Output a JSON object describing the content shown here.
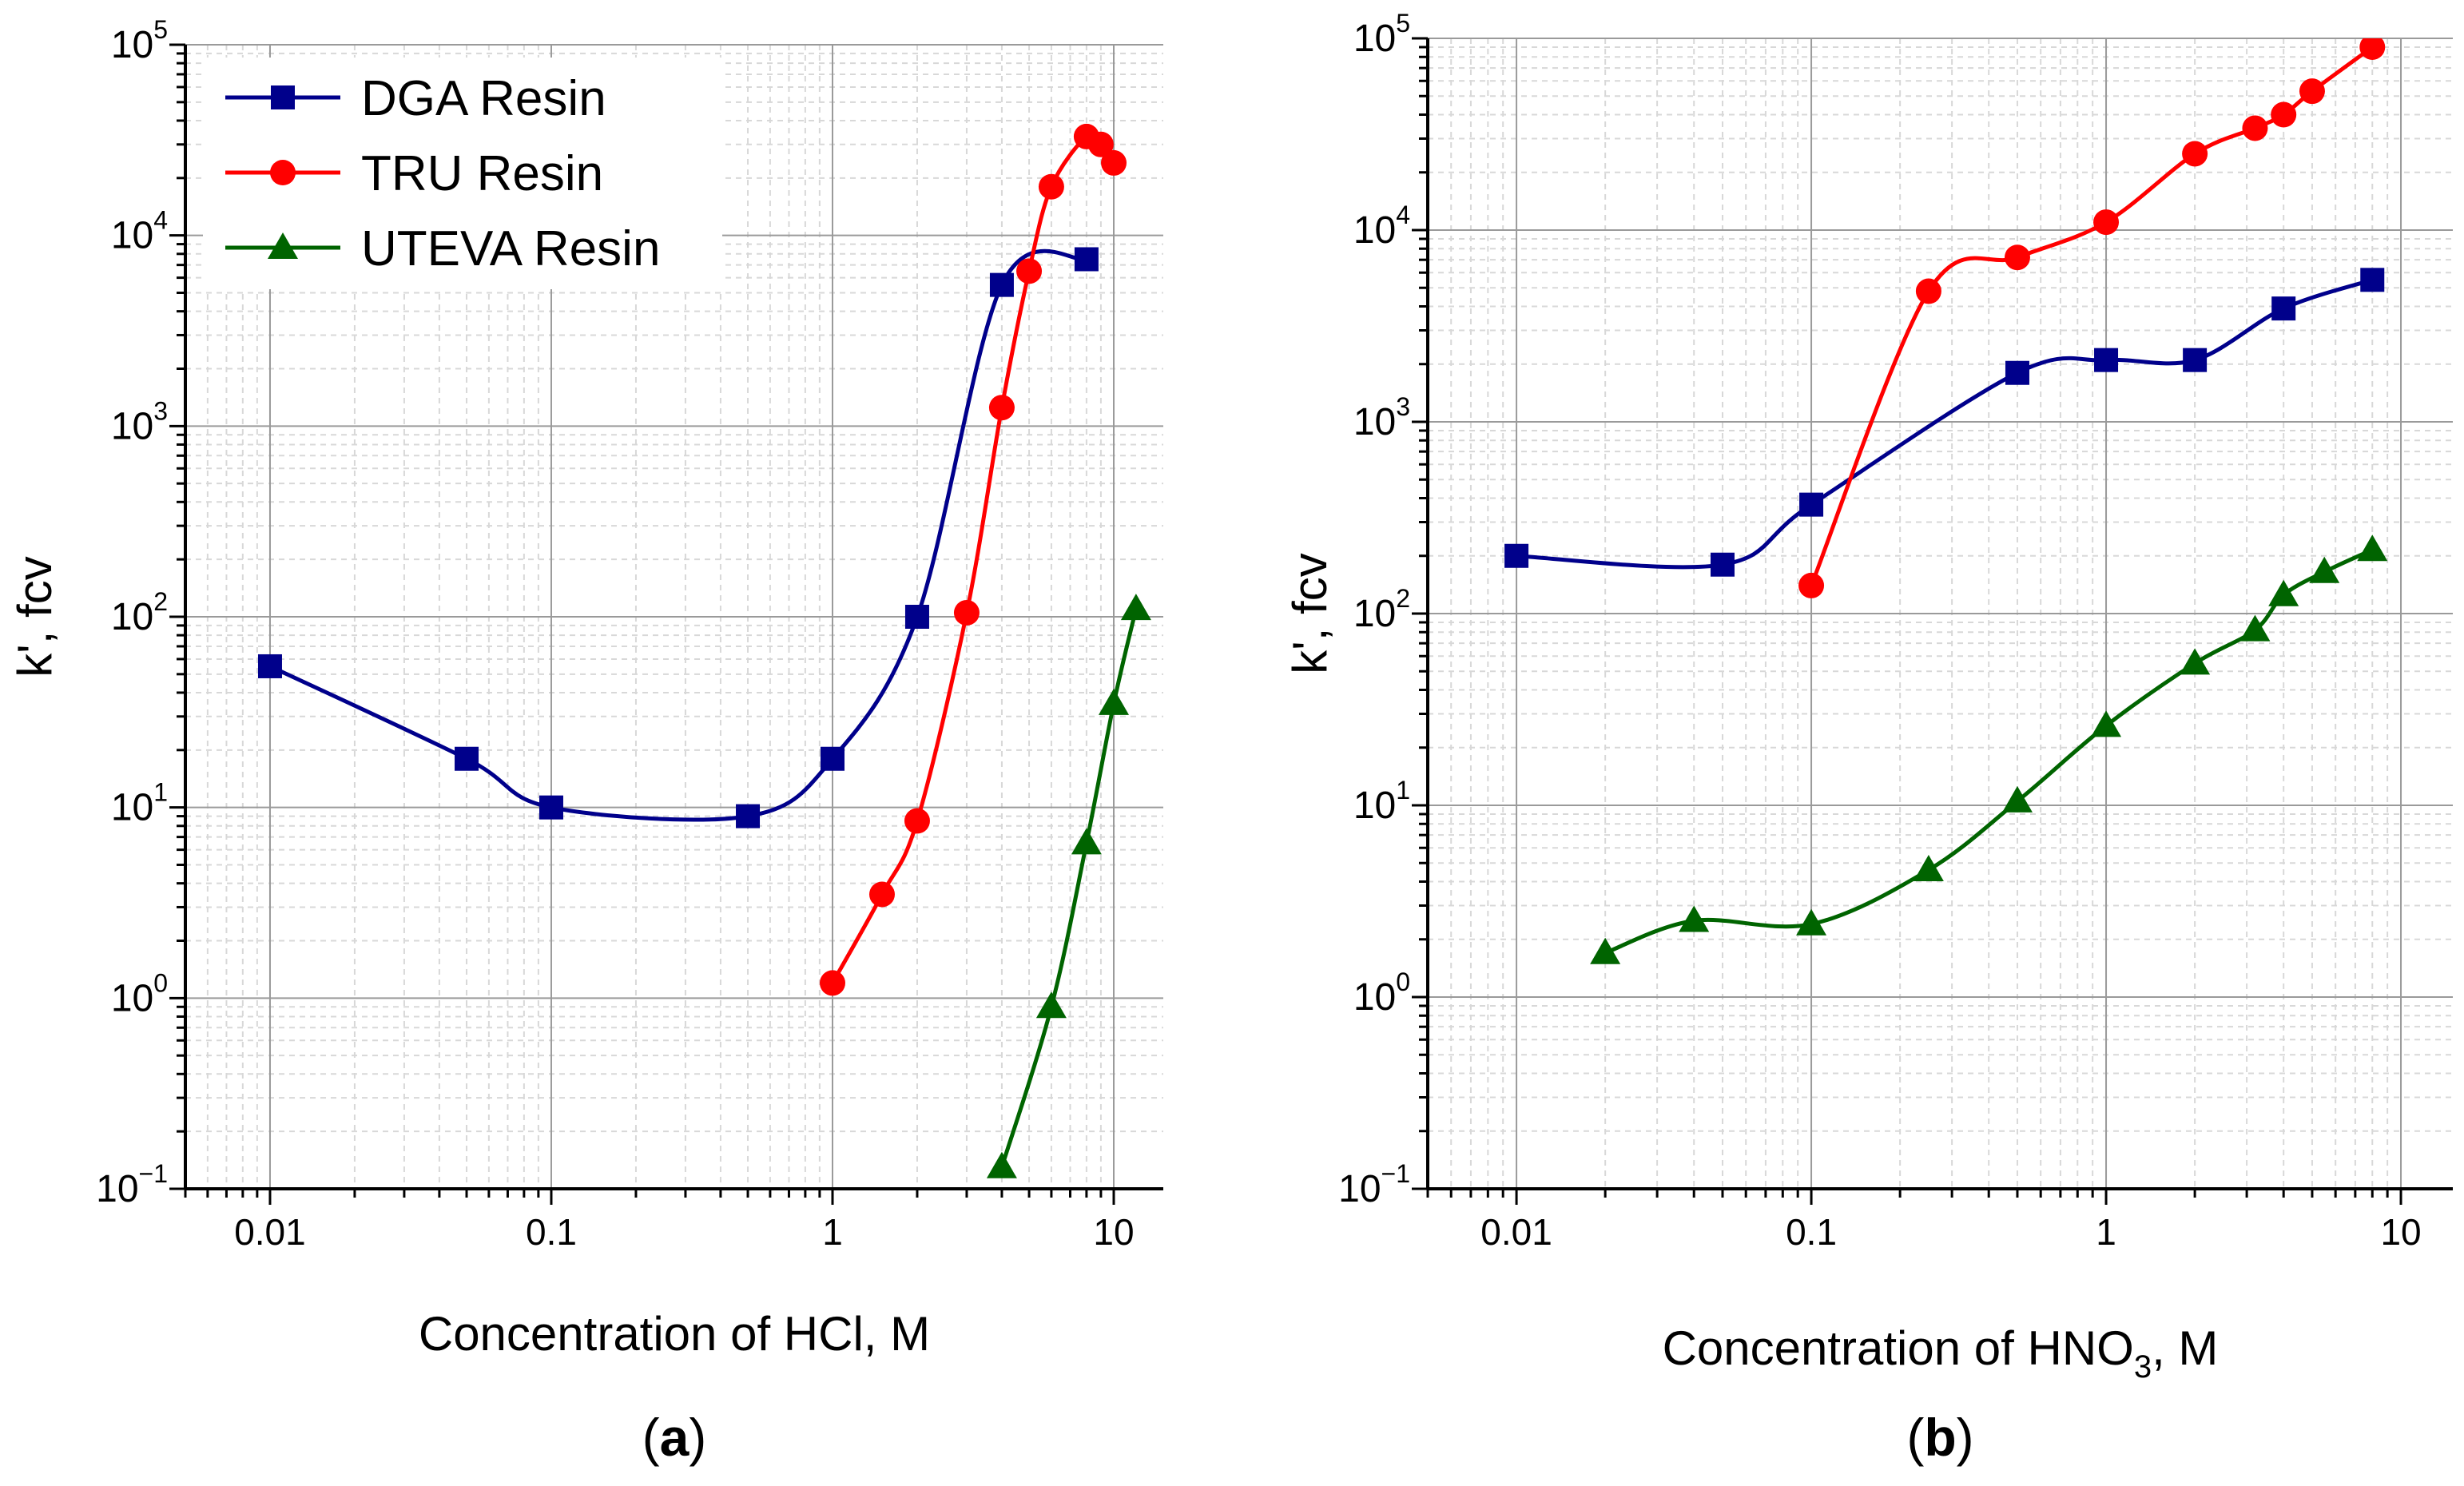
{
  "chart_data": [
    {
      "type": "line",
      "panel_label_open": "(",
      "panel_label_letter": "a",
      "panel_label_close": ")",
      "xlabel": "Concentration of HCl, M",
      "ylabel": "k', fcv",
      "xscale": "log",
      "yscale": "log",
      "xlim": [
        0.005,
        15
      ],
      "ylim": [
        0.1,
        100000
      ],
      "grid": true,
      "legend_position": "top-left",
      "xticks": [
        {
          "value": 0.01,
          "label": "0.01"
        },
        {
          "value": 0.1,
          "label": "0.1"
        },
        {
          "value": 1,
          "label": "1"
        },
        {
          "value": 10,
          "label": "10"
        }
      ],
      "yticks": [
        {
          "value": 0.1,
          "base": "10",
          "exp": "−1"
        },
        {
          "value": 1,
          "base": "10",
          "exp": "0"
        },
        {
          "value": 10,
          "base": "10",
          "exp": "1"
        },
        {
          "value": 100,
          "base": "10",
          "exp": "2"
        },
        {
          "value": 1000,
          "base": "10",
          "exp": "3"
        },
        {
          "value": 10000,
          "base": "10",
          "exp": "4"
        },
        {
          "value": 100000,
          "base": "10",
          "exp": "5"
        }
      ],
      "series": [
        {
          "name": "DGA Resin",
          "color": "#00008b",
          "marker": "square",
          "x": [
            0.01,
            0.05,
            0.1,
            0.5,
            1,
            2,
            4,
            8
          ],
          "y": [
            55,
            18,
            10,
            9,
            18,
            100,
            5500,
            7500
          ]
        },
        {
          "name": "TRU Resin",
          "color": "#ff0000",
          "marker": "circle",
          "x": [
            1,
            1.5,
            2,
            3,
            4,
            5,
            6,
            8,
            9,
            10
          ],
          "y": [
            1.2,
            3.5,
            8.5,
            105,
            1250,
            6500,
            18000,
            33000,
            30000,
            24000
          ]
        },
        {
          "name": "UTEVA Resin",
          "color": "#006400",
          "marker": "triangle",
          "x": [
            4,
            6,
            8,
            10,
            12
          ],
          "y": [
            0.13,
            0.9,
            6.5,
            35,
            110
          ]
        }
      ]
    },
    {
      "type": "line",
      "panel_label_open": "(",
      "panel_label_letter": "b",
      "panel_label_close": ")",
      "xlabel_prefix": "Concentration of HNO",
      "xlabel_sub": "3",
      "xlabel_suffix": ", M",
      "ylabel": "k', fcv",
      "xscale": "log",
      "yscale": "log",
      "xlim": [
        0.005,
        15
      ],
      "ylim": [
        0.1,
        100000
      ],
      "grid": true,
      "xticks": [
        {
          "value": 0.01,
          "label": "0.01"
        },
        {
          "value": 0.1,
          "label": "0.1"
        },
        {
          "value": 1,
          "label": "1"
        },
        {
          "value": 10,
          "label": "10"
        }
      ],
      "yticks": [
        {
          "value": 0.1,
          "base": "10",
          "exp": "−1"
        },
        {
          "value": 1,
          "base": "10",
          "exp": "0"
        },
        {
          "value": 10,
          "base": "10",
          "exp": "1"
        },
        {
          "value": 100,
          "base": "10",
          "exp": "2"
        },
        {
          "value": 1000,
          "base": "10",
          "exp": "3"
        },
        {
          "value": 10000,
          "base": "10",
          "exp": "4"
        },
        {
          "value": 100000,
          "base": "10",
          "exp": "5"
        }
      ],
      "series": [
        {
          "name": "DGA Resin",
          "color": "#00008b",
          "marker": "square",
          "x": [
            0.01,
            0.05,
            0.1,
            0.5,
            1,
            2,
            4,
            8
          ],
          "y": [
            200,
            180,
            370,
            1800,
            2100,
            2100,
            3900,
            5500
          ]
        },
        {
          "name": "TRU Resin",
          "color": "#ff0000",
          "marker": "circle",
          "x": [
            0.1,
            0.25,
            0.5,
            1,
            2,
            3.2,
            4,
            5,
            8
          ],
          "y": [
            140,
            4800,
            7200,
            11000,
            25000,
            34000,
            40000,
            53000,
            90000
          ]
        },
        {
          "name": "UTEVA Resin",
          "color": "#006400",
          "marker": "triangle",
          "x": [
            0.02,
            0.04,
            0.1,
            0.25,
            0.5,
            1,
            2,
            3.2,
            4,
            5.5,
            8
          ],
          "y": [
            1.7,
            2.5,
            2.4,
            4.6,
            10.5,
            26,
            55,
            82,
            125,
            165,
            215
          ]
        }
      ]
    }
  ]
}
